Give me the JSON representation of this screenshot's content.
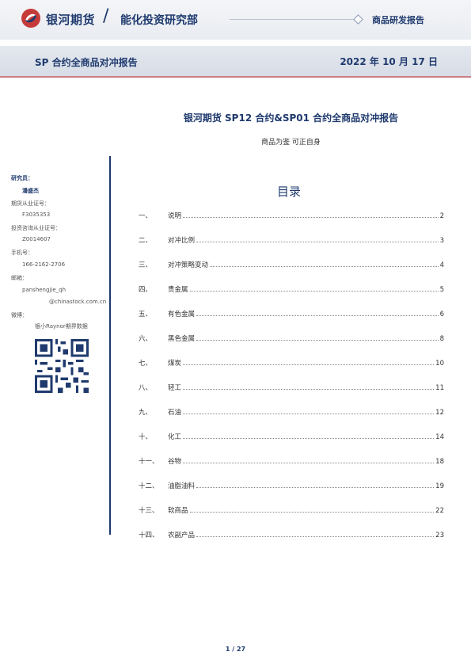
{
  "header": {
    "brand": "银河期货",
    "slash": "/",
    "department": "能化投资研究部",
    "category": "商品研发报告",
    "brand_color": "#1f3a6e",
    "logo_accent": "#c73a3a"
  },
  "title_bar": {
    "title": "SP 合约全商品对冲报告",
    "date": "2022 年 10 月 17 日"
  },
  "report": {
    "title": "银河期货 SP12 合约&SP01 合约全商品对冲报告",
    "subtitle": "商品为鉴 可正自身"
  },
  "sidebar": {
    "researcher_label": "研究员：",
    "researcher_name": "潘盛杰",
    "futures_license_label": "期货从业证号：",
    "futures_license": "F3035353",
    "consult_license_label": "投资咨询从业证号：",
    "consult_license": "Z0014607",
    "phone_label": "手机号：",
    "phone": "166-2162-2706",
    "email_label": "邮箱：",
    "email_1": "panshengjie_qh",
    "email_2": "@chinastock.com.cn",
    "wechat_label": "微博：",
    "wechat": "银小Raynor期界数据",
    "qr_icon": "qr-code-icon"
  },
  "toc": {
    "title": "目录",
    "items": [
      {
        "num": "一、",
        "label": "说明",
        "page": "2"
      },
      {
        "num": "二、",
        "label": "对冲比例",
        "page": "3"
      },
      {
        "num": "三、",
        "label": "对冲策略变动",
        "page": "4"
      },
      {
        "num": "四、",
        "label": "贵金属",
        "page": "5"
      },
      {
        "num": "五、",
        "label": "有色金属",
        "page": "6"
      },
      {
        "num": "六、",
        "label": "黑色金属",
        "page": "8"
      },
      {
        "num": "七、",
        "label": "煤炭",
        "page": "10"
      },
      {
        "num": "八、",
        "label": "轻工",
        "page": "11"
      },
      {
        "num": "九、",
        "label": "石油",
        "page": "12"
      },
      {
        "num": "十、",
        "label": "化工",
        "page": "14"
      },
      {
        "num": "十一、",
        "label": "谷物",
        "page": "18"
      },
      {
        "num": "十二、",
        "label": "油脂油料",
        "page": "19"
      },
      {
        "num": "十三、",
        "label": "软商品",
        "page": "22"
      },
      {
        "num": "十四、",
        "label": "农副产品",
        "page": "23"
      }
    ]
  },
  "footer": {
    "page": "1 / 27"
  }
}
